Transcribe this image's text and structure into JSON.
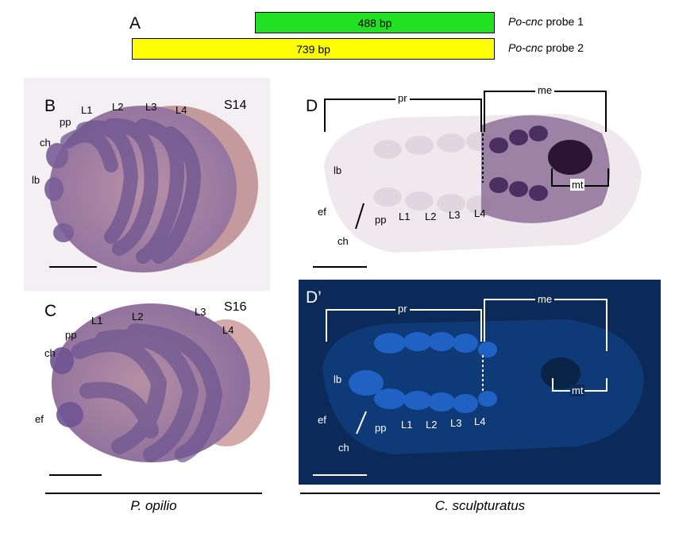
{
  "panelA": {
    "label": "A",
    "probe1": {
      "bp": "488 bp",
      "gene": "Po-cnc",
      "suffix": " probe 1",
      "color": "#22e022"
    },
    "probe2": {
      "bp": "739 bp",
      "gene": "Po-cnc",
      "suffix": " probe 2",
      "color": "#ffff00"
    }
  },
  "panelB": {
    "label": "B",
    "stage": "S14",
    "labels": {
      "pp": "pp",
      "L1": "L1",
      "L2": "L2",
      "L3": "L3",
      "L4": "L4",
      "ch": "ch",
      "lb": "lb"
    }
  },
  "panelC": {
    "label": "C",
    "stage": "S16",
    "labels": {
      "L1": "L1",
      "L2": "L2",
      "L3": "L3",
      "L4": "L4",
      "pp": "pp",
      "ch": "ch",
      "ef": "ef"
    }
  },
  "panelD": {
    "label": "D",
    "labels": {
      "pr": "pr",
      "me": "me",
      "lb": "lb",
      "mt": "mt",
      "ef": "ef",
      "pp": "pp",
      "L1": "L1",
      "L2": "L2",
      "L3": "L3",
      "L4": "L4",
      "ch": "ch"
    }
  },
  "panelD2": {
    "label": "D’",
    "labels": {
      "pr": "pr",
      "me": "me",
      "lb": "lb",
      "mt": "mt",
      "ef": "ef",
      "pp": "pp",
      "L1": "L1",
      "L2": "L2",
      "L3": "L3",
      "L4": "L4",
      "ch": "ch"
    }
  },
  "species": {
    "left": "P. opilio",
    "right": "C. sculpturatus"
  },
  "colors": {
    "opilio_embryo": "#8a6a95",
    "opilio_bg": "#efeaf0",
    "scorpion_bg": "#0b2a5a",
    "scorpion_stain": "#4a3060"
  }
}
